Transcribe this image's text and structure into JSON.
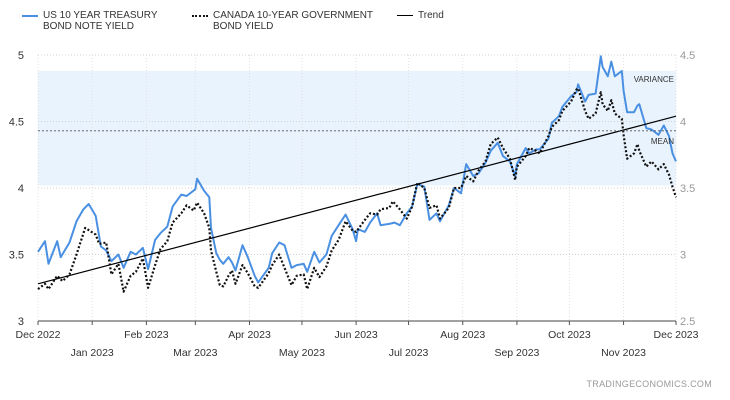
{
  "chart_data": {
    "type": "line",
    "legend_placement": "top-left",
    "grid": true,
    "x_tick_labels_top_row": [
      "Dec 2022",
      "Feb 2023",
      "Apr 2023",
      "Jun 2023",
      "Aug 2023",
      "Oct 2023",
      "Dec 2023"
    ],
    "x_tick_labels_bottom_row": [
      "Jan 2023",
      "Mar 2023",
      "May 2023",
      "Jul 2023",
      "Sep 2023",
      "Nov 2023"
    ],
    "x_range": [
      "2022-12-01",
      "2023-12-01"
    ],
    "y_left": {
      "range": [
        3,
        5
      ],
      "ticks": [
        "3",
        "3.5",
        "4",
        "4.5",
        "5"
      ]
    },
    "y_right": {
      "range": [
        2.5,
        4.5
      ],
      "ticks": [
        "2.5",
        "3",
        "3.5",
        "4",
        "4.5"
      ]
    },
    "series": [
      {
        "name": "US 10 YEAR TREASURY BOND NOTE YIELD",
        "axis": "left",
        "color": "#4a90e2",
        "style": "solid",
        "points": [
          [
            "2022-12-01",
            3.52
          ],
          [
            "2022-12-05",
            3.6
          ],
          [
            "2022-12-07",
            3.43
          ],
          [
            "2022-12-12",
            3.6
          ],
          [
            "2022-12-14",
            3.48
          ],
          [
            "2022-12-19",
            3.59
          ],
          [
            "2022-12-23",
            3.75
          ],
          [
            "2022-12-27",
            3.84
          ],
          [
            "2022-12-30",
            3.88
          ],
          [
            "2023-01-03",
            3.79
          ],
          [
            "2023-01-06",
            3.56
          ],
          [
            "2023-01-09",
            3.53
          ],
          [
            "2023-01-12",
            3.45
          ],
          [
            "2023-01-16",
            3.5
          ],
          [
            "2023-01-19",
            3.4
          ],
          [
            "2023-01-23",
            3.52
          ],
          [
            "2023-01-26",
            3.5
          ],
          [
            "2023-01-30",
            3.55
          ],
          [
            "2023-02-02",
            3.39
          ],
          [
            "2023-02-06",
            3.61
          ],
          [
            "2023-02-09",
            3.66
          ],
          [
            "2023-02-13",
            3.71
          ],
          [
            "2023-02-16",
            3.86
          ],
          [
            "2023-02-21",
            3.95
          ],
          [
            "2023-02-24",
            3.94
          ],
          [
            "2023-03-01",
            3.99
          ],
          [
            "2023-03-02",
            4.07
          ],
          [
            "2023-03-06",
            3.98
          ],
          [
            "2023-03-09",
            3.93
          ],
          [
            "2023-03-10",
            3.7
          ],
          [
            "2023-03-13",
            3.51
          ],
          [
            "2023-03-15",
            3.46
          ],
          [
            "2023-03-17",
            3.43
          ],
          [
            "2023-03-20",
            3.48
          ],
          [
            "2023-03-22",
            3.44
          ],
          [
            "2023-03-24",
            3.38
          ],
          [
            "2023-03-28",
            3.57
          ],
          [
            "2023-03-31",
            3.48
          ],
          [
            "2023-04-04",
            3.34
          ],
          [
            "2023-04-06",
            3.29
          ],
          [
            "2023-04-12",
            3.4
          ],
          [
            "2023-04-14",
            3.51
          ],
          [
            "2023-04-18",
            3.59
          ],
          [
            "2023-04-21",
            3.57
          ],
          [
            "2023-04-25",
            3.4
          ],
          [
            "2023-04-28",
            3.42
          ],
          [
            "2023-05-02",
            3.43
          ],
          [
            "2023-05-04",
            3.37
          ],
          [
            "2023-05-08",
            3.52
          ],
          [
            "2023-05-11",
            3.44
          ],
          [
            "2023-05-15",
            3.5
          ],
          [
            "2023-05-18",
            3.64
          ],
          [
            "2023-05-22",
            3.72
          ],
          [
            "2023-05-26",
            3.8
          ],
          [
            "2023-05-30",
            3.69
          ],
          [
            "2023-06-01",
            3.6
          ],
          [
            "2023-06-02",
            3.69
          ],
          [
            "2023-06-06",
            3.67
          ],
          [
            "2023-06-09",
            3.74
          ],
          [
            "2023-06-13",
            3.81
          ],
          [
            "2023-06-15",
            3.72
          ],
          [
            "2023-06-20",
            3.73
          ],
          [
            "2023-06-23",
            3.74
          ],
          [
            "2023-06-26",
            3.72
          ],
          [
            "2023-06-30",
            3.81
          ],
          [
            "2023-07-03",
            3.86
          ],
          [
            "2023-07-06",
            4.03
          ],
          [
            "2023-07-10",
            4.01
          ],
          [
            "2023-07-13",
            3.76
          ],
          [
            "2023-07-17",
            3.81
          ],
          [
            "2023-07-19",
            3.75
          ],
          [
            "2023-07-24",
            3.87
          ],
          [
            "2023-07-27",
            4.0
          ],
          [
            "2023-07-31",
            3.96
          ],
          [
            "2023-08-03",
            4.18
          ],
          [
            "2023-08-07",
            4.09
          ],
          [
            "2023-08-10",
            4.11
          ],
          [
            "2023-08-14",
            4.19
          ],
          [
            "2023-08-17",
            4.28
          ],
          [
            "2023-08-21",
            4.34
          ],
          [
            "2023-08-24",
            4.24
          ],
          [
            "2023-08-28",
            4.2
          ],
          [
            "2023-08-31",
            4.09
          ],
          [
            "2023-09-01",
            4.18
          ],
          [
            "2023-09-06",
            4.3
          ],
          [
            "2023-09-08",
            4.26
          ],
          [
            "2023-09-12",
            4.29
          ],
          [
            "2023-09-14",
            4.29
          ],
          [
            "2023-09-19",
            4.37
          ],
          [
            "2023-09-21",
            4.49
          ],
          [
            "2023-09-25",
            4.54
          ],
          [
            "2023-09-27",
            4.61
          ],
          [
            "2023-10-02",
            4.69
          ],
          [
            "2023-10-05",
            4.72
          ],
          [
            "2023-10-06",
            4.78
          ],
          [
            "2023-10-10",
            4.65
          ],
          [
            "2023-10-12",
            4.7
          ],
          [
            "2023-10-16",
            4.71
          ],
          [
            "2023-10-19",
            4.99
          ],
          [
            "2023-10-20",
            4.91
          ],
          [
            "2023-10-23",
            4.84
          ],
          [
            "2023-10-25",
            4.95
          ],
          [
            "2023-10-27",
            4.84
          ],
          [
            "2023-10-31",
            4.88
          ],
          [
            "2023-11-01",
            4.73
          ],
          [
            "2023-11-03",
            4.57
          ],
          [
            "2023-11-07",
            4.57
          ],
          [
            "2023-11-09",
            4.62
          ],
          [
            "2023-11-10",
            4.63
          ],
          [
            "2023-11-14",
            4.45
          ],
          [
            "2023-11-17",
            4.44
          ],
          [
            "2023-11-21",
            4.4
          ],
          [
            "2023-11-24",
            4.47
          ],
          [
            "2023-11-27",
            4.39
          ],
          [
            "2023-11-29",
            4.26
          ],
          [
            "2023-12-01",
            4.2
          ]
        ]
      },
      {
        "name": "CANADA 10-YEAR GOVERNMENT BOND YIELD",
        "axis": "right",
        "color": "#111111",
        "style": "dotted",
        "points": [
          [
            "2022-12-01",
            2.74
          ],
          [
            "2022-12-05",
            2.78
          ],
          [
            "2022-12-07",
            2.74
          ],
          [
            "2022-12-12",
            2.84
          ],
          [
            "2022-12-15",
            2.8
          ],
          [
            "2022-12-19",
            2.85
          ],
          [
            "2022-12-23",
            3.0
          ],
          [
            "2022-12-28",
            3.2
          ],
          [
            "2023-01-03",
            3.15
          ],
          [
            "2023-01-05",
            3.08
          ],
          [
            "2023-01-09",
            3.09
          ],
          [
            "2023-01-12",
            2.85
          ],
          [
            "2023-01-16",
            2.93
          ],
          [
            "2023-01-19",
            2.72
          ],
          [
            "2023-01-23",
            2.84
          ],
          [
            "2023-01-26",
            2.87
          ],
          [
            "2023-01-30",
            2.97
          ],
          [
            "2023-02-02",
            2.75
          ],
          [
            "2023-02-06",
            2.92
          ],
          [
            "2023-02-09",
            3.04
          ],
          [
            "2023-02-13",
            3.1
          ],
          [
            "2023-02-16",
            3.24
          ],
          [
            "2023-02-21",
            3.31
          ],
          [
            "2023-02-24",
            3.37
          ],
          [
            "2023-02-28",
            3.33
          ],
          [
            "2023-03-02",
            3.39
          ],
          [
            "2023-03-06",
            3.31
          ],
          [
            "2023-03-09",
            3.2
          ],
          [
            "2023-03-10",
            3.03
          ],
          [
            "2023-03-13",
            2.87
          ],
          [
            "2023-03-15",
            2.77
          ],
          [
            "2023-03-17",
            2.76
          ],
          [
            "2023-03-20",
            2.84
          ],
          [
            "2023-03-22",
            2.88
          ],
          [
            "2023-03-24",
            2.78
          ],
          [
            "2023-03-28",
            2.92
          ],
          [
            "2023-03-31",
            2.86
          ],
          [
            "2023-04-04",
            2.76
          ],
          [
            "2023-04-06",
            2.75
          ],
          [
            "2023-04-12",
            2.86
          ],
          [
            "2023-04-14",
            2.92
          ],
          [
            "2023-04-18",
            3.0
          ],
          [
            "2023-04-21",
            2.9
          ],
          [
            "2023-04-25",
            2.77
          ],
          [
            "2023-04-28",
            2.84
          ],
          [
            "2023-05-02",
            2.85
          ],
          [
            "2023-05-04",
            2.74
          ],
          [
            "2023-05-08",
            2.9
          ],
          [
            "2023-05-11",
            2.83
          ],
          [
            "2023-05-15",
            2.91
          ],
          [
            "2023-05-18",
            3.03
          ],
          [
            "2023-05-22",
            3.11
          ],
          [
            "2023-05-26",
            3.25
          ],
          [
            "2023-05-30",
            3.18
          ],
          [
            "2023-06-01",
            3.17
          ],
          [
            "2023-06-06",
            3.26
          ],
          [
            "2023-06-09",
            3.31
          ],
          [
            "2023-06-13",
            3.3
          ],
          [
            "2023-06-15",
            3.34
          ],
          [
            "2023-06-20",
            3.35
          ],
          [
            "2023-06-22",
            3.4
          ],
          [
            "2023-06-26",
            3.34
          ],
          [
            "2023-06-30",
            3.27
          ],
          [
            "2023-07-03",
            3.36
          ],
          [
            "2023-07-06",
            3.54
          ],
          [
            "2023-07-10",
            3.5
          ],
          [
            "2023-07-13",
            3.35
          ],
          [
            "2023-07-17",
            3.37
          ],
          [
            "2023-07-19",
            3.27
          ],
          [
            "2023-07-24",
            3.35
          ],
          [
            "2023-07-27",
            3.5
          ],
          [
            "2023-07-31",
            3.5
          ],
          [
            "2023-08-03",
            3.59
          ],
          [
            "2023-08-07",
            3.55
          ],
          [
            "2023-08-10",
            3.63
          ],
          [
            "2023-08-14",
            3.7
          ],
          [
            "2023-08-17",
            3.83
          ],
          [
            "2023-08-21",
            3.88
          ],
          [
            "2023-08-24",
            3.8
          ],
          [
            "2023-08-28",
            3.72
          ],
          [
            "2023-08-31",
            3.56
          ],
          [
            "2023-09-01",
            3.66
          ],
          [
            "2023-09-06",
            3.74
          ],
          [
            "2023-09-08",
            3.8
          ],
          [
            "2023-09-12",
            3.78
          ],
          [
            "2023-09-14",
            3.76
          ],
          [
            "2023-09-19",
            3.89
          ],
          [
            "2023-09-21",
            3.96
          ],
          [
            "2023-09-25",
            4.01
          ],
          [
            "2023-09-27",
            4.08
          ],
          [
            "2023-10-02",
            4.15
          ],
          [
            "2023-10-05",
            4.24
          ],
          [
            "2023-10-06",
            4.25
          ],
          [
            "2023-10-10",
            4.08
          ],
          [
            "2023-10-12",
            4.02
          ],
          [
            "2023-10-16",
            4.06
          ],
          [
            "2023-10-19",
            4.22
          ],
          [
            "2023-10-20",
            4.13
          ],
          [
            "2023-10-23",
            4.08
          ],
          [
            "2023-10-25",
            4.16
          ],
          [
            "2023-10-27",
            4.06
          ],
          [
            "2023-10-31",
            4.02
          ],
          [
            "2023-11-01",
            3.9
          ],
          [
            "2023-11-03",
            3.72
          ],
          [
            "2023-11-07",
            3.76
          ],
          [
            "2023-11-09",
            3.83
          ],
          [
            "2023-11-10",
            3.78
          ],
          [
            "2023-11-14",
            3.66
          ],
          [
            "2023-11-17",
            3.7
          ],
          [
            "2023-11-21",
            3.64
          ],
          [
            "2023-11-24",
            3.68
          ],
          [
            "2023-11-27",
            3.6
          ],
          [
            "2023-11-29",
            3.51
          ],
          [
            "2023-12-01",
            3.43
          ]
        ]
      },
      {
        "name": "Trend",
        "axis": "left",
        "color": "#000000",
        "style": "solid",
        "points": [
          [
            "2022-12-01",
            3.28
          ],
          [
            "2023-12-01",
            4.54
          ]
        ]
      }
    ],
    "annotations": [
      {
        "text": "VARIANCE",
        "type": "band",
        "axis": "left",
        "range": [
          4.02,
          4.88
        ]
      },
      {
        "text": "MEAN",
        "type": "line",
        "axis": "left",
        "value": 4.43
      }
    ]
  },
  "credit": "TRADINGECONOMICS.COM"
}
